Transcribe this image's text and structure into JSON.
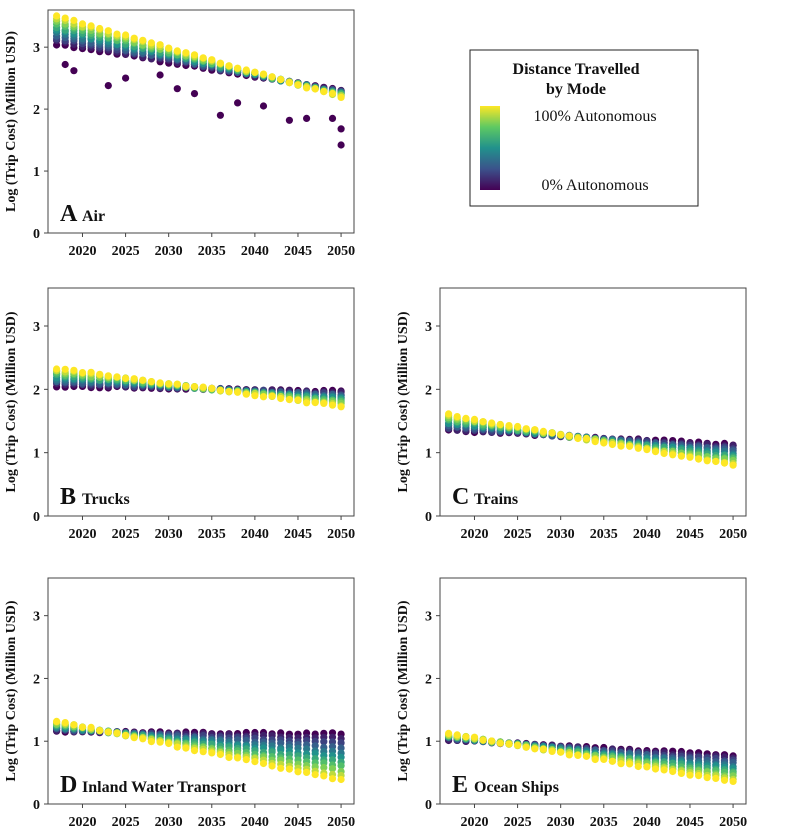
{
  "chart_data": {
    "type": "scatter",
    "x_ticks": [
      "2020",
      "2025",
      "2030",
      "2035",
      "2040",
      "2045",
      "2050"
    ],
    "y_ticks": [
      "0",
      "1",
      "2",
      "3"
    ],
    "x_range": [
      2016,
      2051.5
    ],
    "y_range": [
      0,
      3.6
    ],
    "colormap": [
      "#440154",
      "#3b528b",
      "#21918c",
      "#5ec962",
      "#fde725"
    ],
    "legend": {
      "title_line1": "Distance  Travelled",
      "title_line2": "by Mode",
      "high_label": "100% Autonomous",
      "low_label": "0% Autonomous"
    },
    "panels": [
      {
        "letter": "A",
        "title": "Air",
        "ylabel": "Log (Trip Cost) (Million USD)",
        "start_year": 2017,
        "end_year": 2050,
        "auto_start": 3.5,
        "auto_end": 2.2,
        "base_start": 3.05,
        "base_end": 2.3,
        "outliers": [
          [
            2018,
            2.72
          ],
          [
            2019,
            2.62
          ],
          [
            2023,
            2.38
          ],
          [
            2025,
            2.5
          ],
          [
            2029,
            2.55
          ],
          [
            2031,
            2.33
          ],
          [
            2033,
            2.25
          ],
          [
            2036,
            1.9
          ],
          [
            2038,
            2.1
          ],
          [
            2041,
            2.05
          ],
          [
            2044,
            1.82
          ],
          [
            2046,
            1.85
          ],
          [
            2049,
            1.85
          ],
          [
            2050,
            1.68
          ],
          [
            2050,
            1.42
          ]
        ]
      },
      {
        "letter": "B",
        "title": "Trucks",
        "ylabel": "Log (Trip Cost) (Million USD)",
        "start_year": 2017,
        "end_year": 2050,
        "auto_start": 2.33,
        "auto_end": 1.73,
        "base_start": 2.05,
        "base_end": 1.97,
        "outliers": []
      },
      {
        "letter": "C",
        "title": "Trains",
        "ylabel": "Log (Trip Cost) (Million USD)",
        "start_year": 2017,
        "end_year": 2050,
        "auto_start": 1.6,
        "auto_end": 0.8,
        "base_start": 1.35,
        "base_end": 1.13,
        "outliers": []
      },
      {
        "letter": "D",
        "title": "Inland Water Transport",
        "ylabel": "Log (Trip Cost) (Million USD)",
        "start_year": 2017,
        "end_year": 2050,
        "auto_start": 1.32,
        "auto_end": 0.38,
        "base_start": 1.15,
        "base_end": 1.12,
        "outliers": []
      },
      {
        "letter": "E",
        "title": "Ocean Ships",
        "ylabel": "Log (Trip Cost) (Million USD)",
        "start_year": 2017,
        "end_year": 2050,
        "auto_start": 1.12,
        "auto_end": 0.35,
        "base_start": 1.02,
        "base_end": 0.78,
        "outliers": []
      }
    ]
  }
}
